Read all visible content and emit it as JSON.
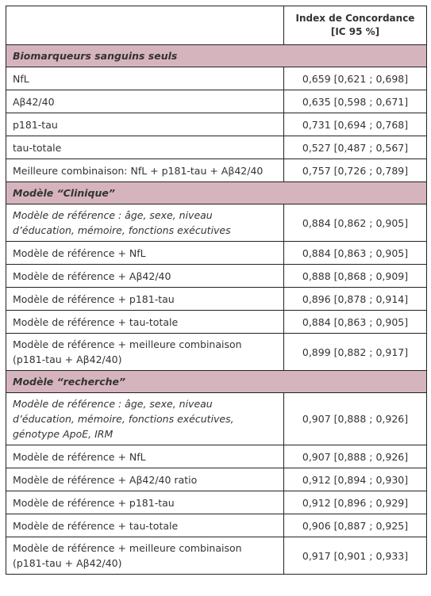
{
  "header": {
    "title_lines": [
      "Index de Concordance",
      "[IC 95 %]"
    ]
  },
  "sections": [
    {
      "title": "Biomarqueurs sanguins seuls",
      "rows": [
        {
          "label": "NfL",
          "value": "0,659 [0,621 ; 0,698]"
        },
        {
          "label": "Aβ42/40",
          "value": "0,635 [0,598 ; 0,671]"
        },
        {
          "label": "p181-tau",
          "value": "0,731 [0,694 ; 0,768]"
        },
        {
          "label": "tau-totale",
          "value": "0,527 [0,487 ; 0,567]"
        },
        {
          "label": "Meilleure combinaison: NfL + p181-tau + Aβ42/40",
          "value": "0,757 [0,726 ; 0,789]"
        }
      ]
    },
    {
      "title": "Modèle “Clinique”",
      "rows": [
        {
          "label": "Modèle de référence : âge, sexe, niveau d’éducation, mémoire, fonctions exécutives",
          "value": "0,884 [0,862 ; 0,905]"
        },
        {
          "label": "Modèle de référence + NfL",
          "value": "0,884 [0,863 ; 0,905]"
        },
        {
          "label": "Modèle de référence + Aβ42/40",
          "value": "0,888 [0,868 ; 0,909]"
        },
        {
          "label": "Modèle de référence + p181-tau",
          "value": "0,896 [0,878 ; 0,914]"
        },
        {
          "label": "Modèle de référence + tau-totale",
          "value": "0,884 [0,863 ; 0,905]"
        },
        {
          "label": "Modèle de référence + meilleure combinaison (p181-tau + Aβ42/40)",
          "value": "0,899 [0,882 ; 0,917]"
        }
      ]
    },
    {
      "title": "Modèle “recherche”",
      "rows": [
        {
          "label": "Modèle de référence : âge, sexe, niveau d’éducation, mémoire, fonctions exécutives, génotype ApoE, IRM",
          "value": "0,907 [0,888 ; 0,926]"
        },
        {
          "label": "Modèle de référence + NfL",
          "value": "0,907 [0,888 ; 0,926]"
        },
        {
          "label": "Modèle de référence + Aβ42/40 ratio",
          "value": "0,912 [0,894 ; 0,930]"
        },
        {
          "label": "Modèle de référence + p181-tau",
          "value": "0,912 [0,896 ; 0,929]"
        },
        {
          "label": "Modèle de référence + tau-totale",
          "value": "0,906 [0,887 ; 0,925]"
        },
        {
          "label": "Modèle de référence + meilleure combinaison (p181-tau + Aβ42/40)",
          "value": "0,917 [0,901 ; 0,933]"
        }
      ]
    }
  ]
}
